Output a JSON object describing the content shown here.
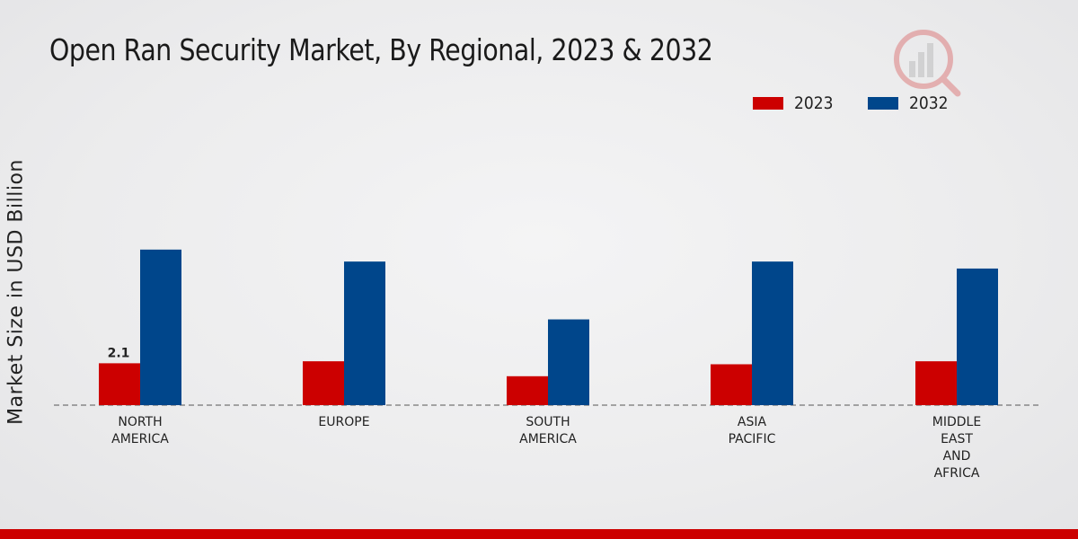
{
  "chart_data": {
    "type": "bar",
    "title": "Open Ran Security Market, By Regional, 2023 & 2032",
    "ylabel": "Market Size in USD Billion",
    "xlabel": "",
    "categories": [
      "NORTH\nAMERICA",
      "EUROPE",
      "SOUTH\nAMERICA",
      "ASIA\nPACIFIC",
      "MIDDLE\nEAST\nAND\nAFRICA"
    ],
    "series": [
      {
        "name": "2023",
        "color": "#cc0000",
        "values": [
          2.1,
          2.2,
          1.45,
          2.05,
          2.2
        ]
      },
      {
        "name": "2032",
        "color": "#00468b",
        "values": [
          7.8,
          7.2,
          4.3,
          7.2,
          6.85
        ]
      }
    ],
    "data_labels": [
      {
        "series": "2023",
        "category_index": 0,
        "text": "2.1"
      }
    ],
    "ylim": [
      0,
      12
    ],
    "grid": false,
    "legend": "top-right"
  }
}
